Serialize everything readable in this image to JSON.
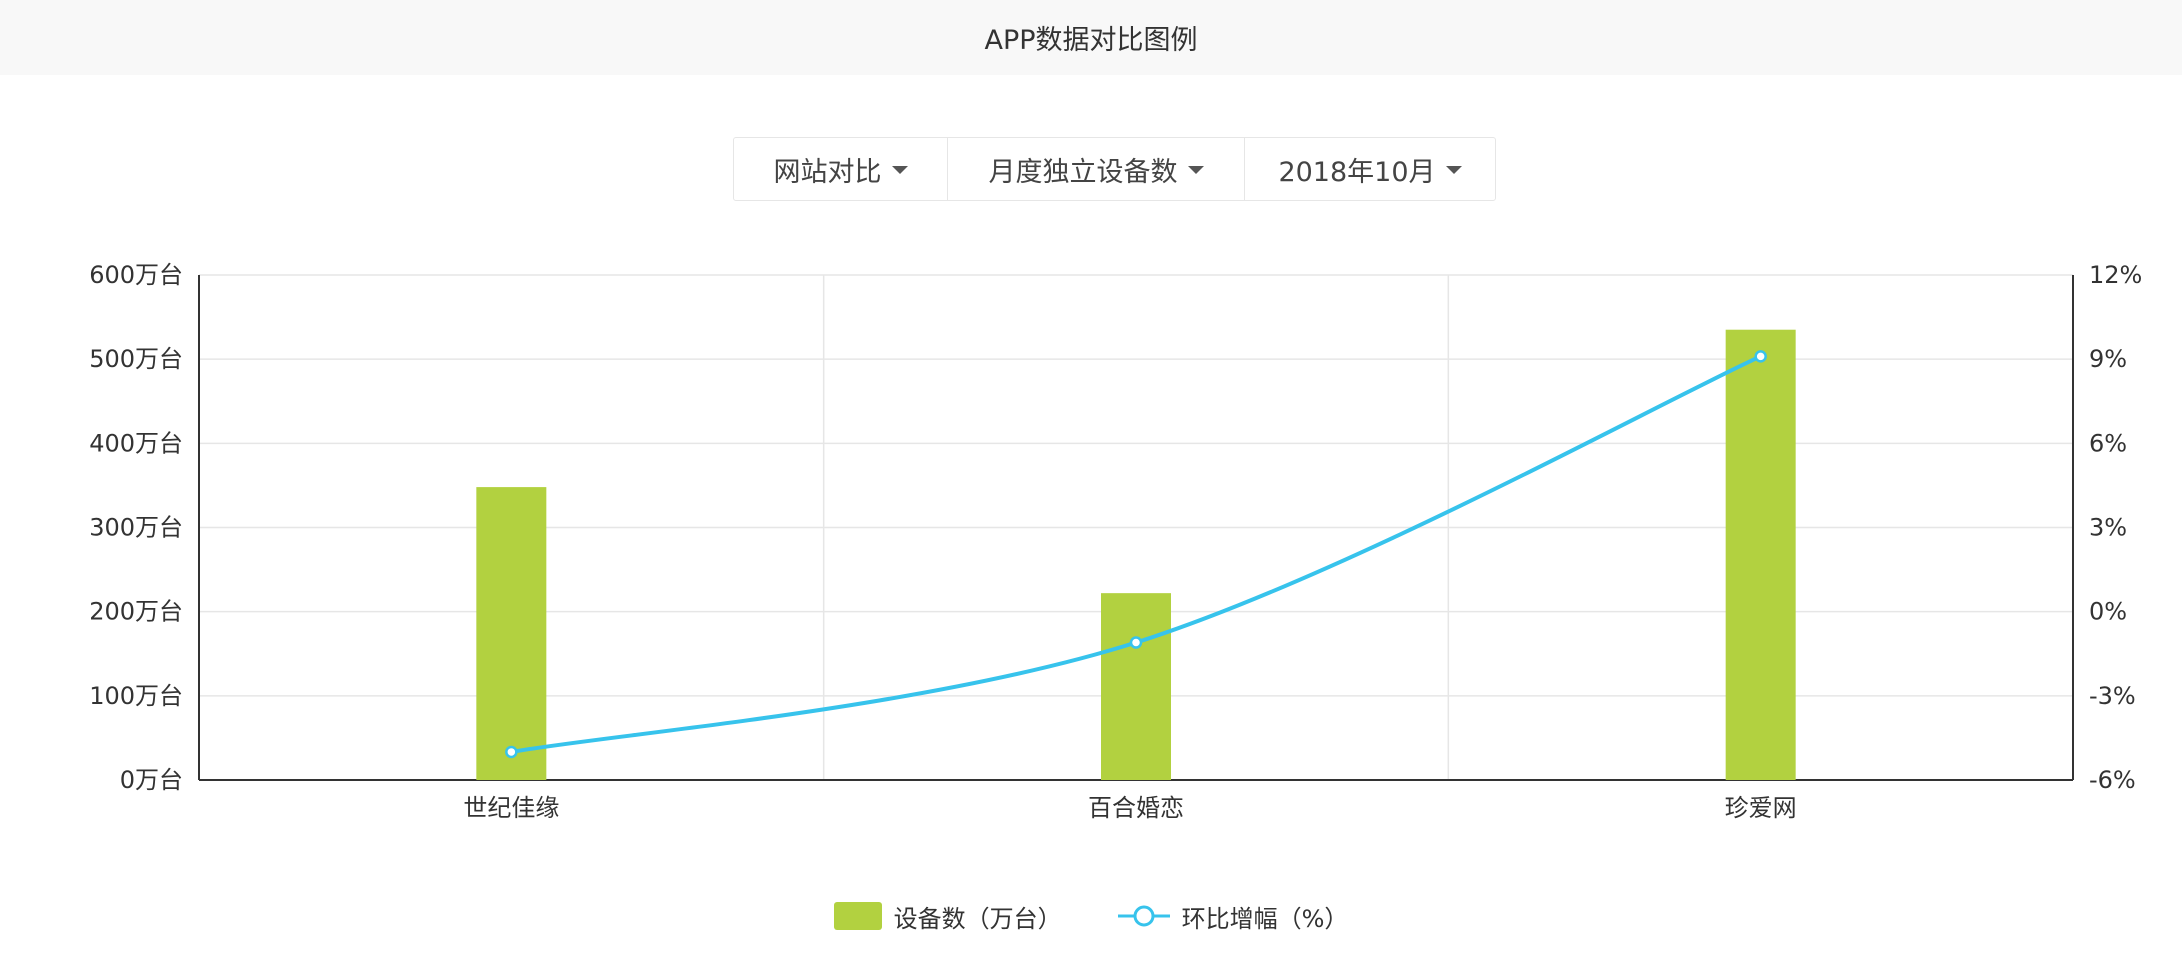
{
  "header": {
    "title": "APP数据对比图例"
  },
  "filters": [
    {
      "label": "网站对比"
    },
    {
      "label": "月度独立设备数"
    },
    {
      "label": "2018年10月"
    }
  ],
  "colors": {
    "bar": "#b2d140",
    "line": "#37c3ec",
    "grid": "#e6e6e6",
    "axis": "#333333"
  },
  "chart_data": {
    "type": "bar",
    "categories": [
      "世纪佳缘",
      "百合婚恋",
      "珍爱网"
    ],
    "series": [
      {
        "name": "设备数（万台）",
        "type": "bar",
        "axis": "left",
        "values": [
          348,
          222,
          535
        ]
      },
      {
        "name": "环比增幅（%）",
        "type": "line",
        "axis": "right",
        "smooth": true,
        "values": [
          -5.0,
          -1.1,
          9.1
        ]
      }
    ],
    "y_left": {
      "min": 0,
      "max": 600,
      "ticks": [
        "0万台",
        "100万台",
        "200万台",
        "300万台",
        "400万台",
        "500万台",
        "600万台"
      ]
    },
    "y_right": {
      "min": -6,
      "max": 12,
      "ticks": [
        "-6%",
        "-3%",
        "0%",
        "3%",
        "6%",
        "9%",
        "12%"
      ]
    },
    "grid": true,
    "legend_position": "bottom"
  }
}
